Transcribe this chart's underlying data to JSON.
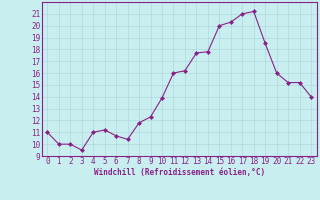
{
  "x": [
    0,
    1,
    2,
    3,
    4,
    5,
    6,
    7,
    8,
    9,
    10,
    11,
    12,
    13,
    14,
    15,
    16,
    17,
    18,
    19,
    20,
    21,
    22,
    23
  ],
  "y": [
    11,
    10,
    10,
    9.5,
    11,
    11.2,
    10.7,
    10.4,
    11.8,
    12.3,
    13.9,
    16.0,
    16.2,
    17.7,
    17.8,
    20.0,
    20.3,
    21.0,
    21.2,
    18.5,
    16.0,
    15.2,
    15.2,
    14.0
  ],
  "line_color": "#882288",
  "marker": "D",
  "marker_size": 2.0,
  "bg_color": "#c8eef0",
  "grid_color": "#b0d8dc",
  "xlabel": "Windchill (Refroidissement éolien,°C)",
  "xlabel_color": "#882288",
  "tick_color": "#882288",
  "spine_color": "#882288",
  "ylim": [
    9,
    22
  ],
  "xlim": [
    -0.5,
    23.5
  ],
  "yticks": [
    9,
    10,
    11,
    12,
    13,
    14,
    15,
    16,
    17,
    18,
    19,
    20,
    21
  ],
  "xticks": [
    0,
    1,
    2,
    3,
    4,
    5,
    6,
    7,
    8,
    9,
    10,
    11,
    12,
    13,
    14,
    15,
    16,
    17,
    18,
    19,
    20,
    21,
    22,
    23
  ],
  "tick_fontsize": 5.5,
  "xlabel_fontsize": 5.5,
  "linewidth": 0.8
}
